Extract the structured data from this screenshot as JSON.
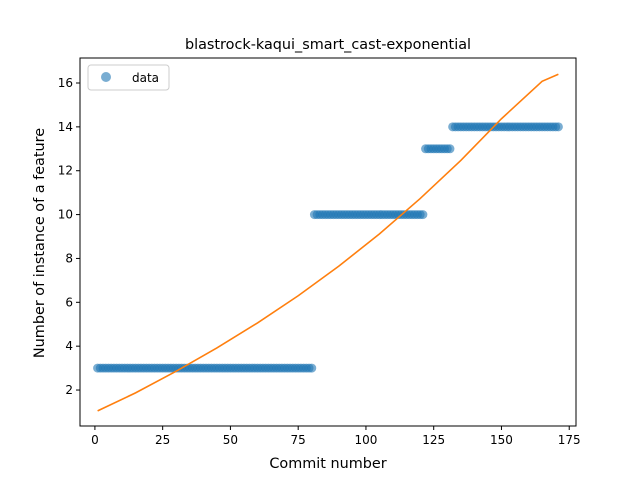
{
  "chart_data": {
    "type": "scatter",
    "title": "blastrock-kaqui_smart_cast-exponential",
    "xlabel": "Commit number",
    "ylabel": "Number of instance of a feature",
    "xlim": [
      -5.5,
      177.5
    ],
    "ylim": [
      0.36,
      17.14
    ],
    "xticks": [
      0,
      25,
      50,
      75,
      100,
      125,
      150,
      175
    ],
    "yticks": [
      2,
      4,
      6,
      8,
      10,
      12,
      14,
      16
    ],
    "grid": false,
    "legend": {
      "placement": "top-left",
      "entries": [
        "data"
      ]
    },
    "colors": {
      "data": "#1f77b4",
      "fit": "#ff7f0e"
    },
    "series": [
      {
        "name": "data",
        "kind": "points",
        "segments": [
          {
            "x_from": 1,
            "x_to": 80,
            "y": 3
          },
          {
            "x_from": 81,
            "x_to": 121,
            "y": 10
          },
          {
            "x_from": 122,
            "x_to": 131,
            "y": 13
          },
          {
            "x_from": 132,
            "x_to": 171,
            "y": 14
          }
        ]
      },
      {
        "kind": "line",
        "x": [
          1,
          15,
          30,
          45,
          60,
          75,
          90,
          105,
          120,
          135,
          150,
          165,
          171
        ],
        "y": [
          1.05,
          1.87,
          2.86,
          3.92,
          5.06,
          6.3,
          7.65,
          9.12,
          10.73,
          12.47,
          14.37,
          16.08,
          16.4
        ]
      }
    ]
  }
}
